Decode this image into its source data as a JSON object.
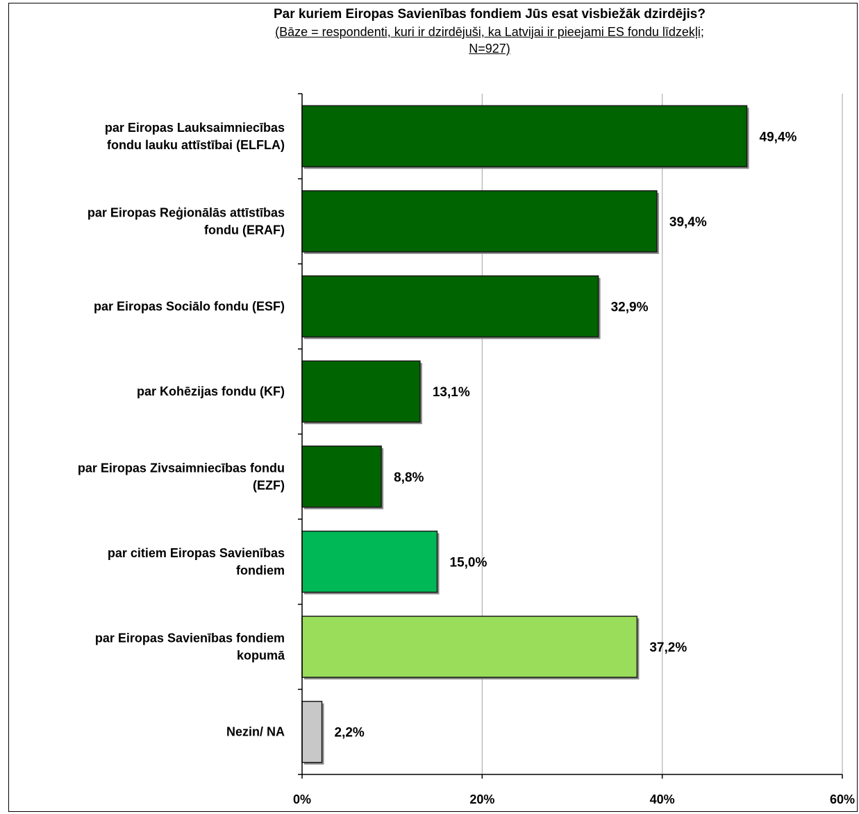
{
  "chart_data": {
    "type": "bar",
    "orientation": "horizontal",
    "title": "Par kuriem Eiropas Savienības fondiem Jūs esat visbiežāk dzirdējis?",
    "subtitle_lines": [
      "(Bāze = respondenti, kuri ir dzirdējuši, ka Latvijai ir pieejami ES fondu līdzekļi;",
      "N=927)"
    ],
    "categories": [
      [
        "par Eiropas Lauksaimniecības",
        "fondu lauku attīstībai (ELFLA)"
      ],
      [
        "par Eiropas Reģionālās attīstības",
        "fondu  (ERAF)"
      ],
      [
        "par Eiropas Sociālo fondu  (ESF)"
      ],
      [
        "par Kohēzijas fondu  (KF)"
      ],
      [
        "par Eiropas Zivsaimniecības fondu",
        "(EZF)"
      ],
      [
        "par citiem  Eiropas Savienības",
        "fondiem"
      ],
      [
        "par Eiropas Savienības fondiem",
        "kopumā"
      ],
      [
        "Nezin/ NA"
      ]
    ],
    "values": [
      49.4,
      39.4,
      32.9,
      13.1,
      8.8,
      15.0,
      37.2,
      2.2
    ],
    "value_labels": [
      "49,4%",
      "39,4%",
      "32,9%",
      "13,1%",
      "8,8%",
      "15,0%",
      "37,2%",
      "2,2%"
    ],
    "bar_colors": [
      "#006400",
      "#006400",
      "#006400",
      "#006400",
      "#006400",
      "#00B855",
      "#9ADD5A",
      "#C8C8C8"
    ],
    "xlim": [
      0,
      60
    ],
    "x_ticks": [
      0,
      20,
      40,
      60
    ],
    "x_tick_labels": [
      "0%",
      "20%",
      "40%",
      "60%"
    ],
    "grid": true,
    "xlabel": "",
    "ylabel": ""
  }
}
